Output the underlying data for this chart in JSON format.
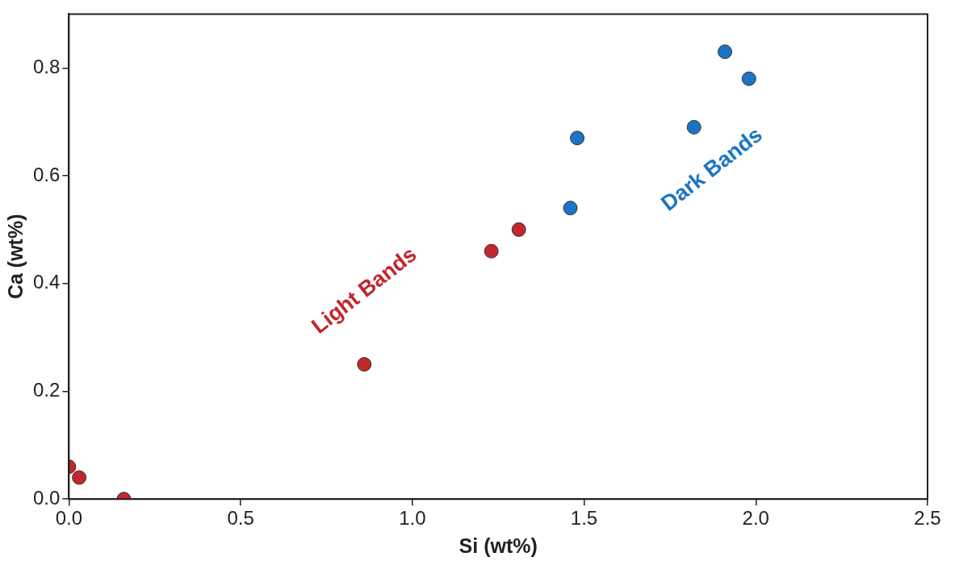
{
  "chart_data": {
    "type": "scatter",
    "xlabel": "Si (wt%)",
    "ylabel": "Ca (wt%)",
    "xlim": [
      0,
      2.5
    ],
    "xticks": [
      {
        "value": 0,
        "label": "0.0"
      },
      0.5,
      {
        "value": 1,
        "label": "1.0"
      },
      1.5,
      {
        "value": 2,
        "label": "2.0"
      },
      2.5
    ],
    "ylim": [
      0,
      0.9
    ],
    "yticks": [
      {
        "value": 0,
        "label": "0.0"
      },
      0.2,
      0.4,
      0.6,
      0.8
    ],
    "grid": false,
    "legend": false,
    "marker": "circle",
    "series": [
      {
        "name": "Light Bands",
        "color": "#c1272d",
        "x": [
          0,
          0.03,
          0.16,
          0.86,
          1.23,
          1.31
        ],
        "values": [
          0.06,
          0.04,
          0.0,
          0.25,
          0.46,
          0.5
        ]
      },
      {
        "name": "Dark Bands",
        "color": "#1b75c4",
        "x": [
          1.46,
          1.48,
          1.82,
          1.91,
          1.98
        ],
        "values": [
          0.54,
          0.67,
          0.69,
          0.83,
          0.78
        ]
      }
    ]
  }
}
